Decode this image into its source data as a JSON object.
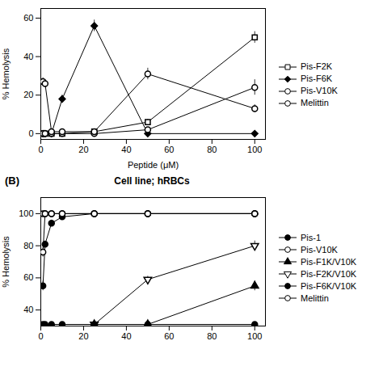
{
  "chart_data": [
    {
      "type": "line",
      "xlabel": "Peptide (μM)",
      "ylabel": "% Hemolysis",
      "xlim": [
        0,
        105
      ],
      "ylim": [
        -3,
        65
      ],
      "xticks": [
        0,
        20,
        40,
        60,
        80,
        100
      ],
      "yticks": [
        0,
        20,
        40,
        60
      ],
      "grid": false,
      "legend": "right",
      "series": [
        {
          "name": "Pis-F2K",
          "color": "black",
          "marker": "square-open",
          "x": [
            1,
            2,
            5,
            10,
            25,
            50,
            100
          ],
          "values": [
            0,
            0,
            0,
            0,
            1,
            6,
            50
          ],
          "yerr": [
            0.5,
            0.5,
            0.5,
            0.5,
            1,
            1.5,
            3
          ]
        },
        {
          "name": "Pis-F6K",
          "color": "black",
          "marker": "diamond",
          "x": [
            1,
            2,
            5,
            10,
            25,
            50,
            100
          ],
          "values": [
            0,
            0,
            0,
            18,
            56,
            0,
            0
          ],
          "yerr": [
            0.5,
            0.5,
            0.5,
            2,
            3,
            0.5,
            0.5
          ]
        },
        {
          "name": "Pis-V10K",
          "color": "black",
          "marker": "circle-open",
          "x": [
            1,
            2,
            5,
            10,
            25,
            50,
            100
          ],
          "values": [
            0,
            0,
            0,
            0,
            0,
            2,
            24
          ],
          "yerr": [
            0.3,
            0.3,
            0.3,
            0.3,
            0.3,
            1,
            4
          ]
        },
        {
          "name": "Melittin",
          "color": "black",
          "marker": "circle-open",
          "x": [
            1,
            2,
            5,
            10,
            25,
            50,
            100
          ],
          "values": [
            27,
            26,
            1,
            1,
            1,
            31,
            13
          ],
          "yerr": [
            2,
            2,
            0.5,
            0.5,
            0.5,
            3,
            2
          ]
        }
      ]
    },
    {
      "type": "line",
      "title": "Cell line; hRBCs",
      "annotation": "(B)",
      "ylabel": "% Hemolysis",
      "xlim": [
        0,
        105
      ],
      "ylim": [
        30,
        110
      ],
      "xticks": [
        0,
        20,
        40,
        60,
        80,
        100
      ],
      "yticks": [
        40,
        60,
        80,
        100
      ],
      "grid": false,
      "legend": "right",
      "series": [
        {
          "name": "Pis-1",
          "color": "black",
          "marker": "circle",
          "x": [
            1,
            2,
            5,
            10,
            25,
            50,
            100
          ],
          "values": [
            55,
            81,
            94,
            98,
            100,
            100,
            100
          ],
          "yerr": [
            3,
            2,
            2,
            2,
            1,
            1,
            1
          ]
        },
        {
          "name": "Pis-V10K",
          "color": "black",
          "marker": "circle-open",
          "x": [
            1,
            2,
            5,
            10,
            25,
            50,
            100
          ],
          "values": [
            76,
            100,
            100,
            100,
            100,
            100,
            100
          ],
          "yerr": [
            3,
            1,
            1,
            1,
            1,
            1,
            1
          ]
        },
        {
          "name": "Pis-F1K/V10K",
          "color": "black",
          "marker": "triangle",
          "x": [
            25,
            50,
            100
          ],
          "values": [
            31,
            31,
            55
          ],
          "yerr": [
            1,
            1,
            3
          ]
        },
        {
          "name": "Pis-F2K/V10K",
          "color": "black",
          "marker": "triangle-down-open",
          "x": [
            25,
            50,
            100
          ],
          "values": [
            31,
            59,
            80
          ],
          "yerr": [
            1,
            2,
            3
          ]
        },
        {
          "name": "Pis-F6K/V10K",
          "color": "black",
          "marker": "circle",
          "x": [
            1,
            2,
            5,
            10,
            25,
            50,
            100
          ],
          "values": [
            31,
            31,
            31,
            31,
            31,
            31,
            31
          ],
          "yerr": [
            1,
            1,
            1,
            1,
            1,
            1,
            1
          ]
        },
        {
          "name": "Melittin",
          "color": "black",
          "marker": "circle-open",
          "x": [
            1,
            2,
            5,
            10,
            25,
            50,
            100
          ],
          "values": [
            100,
            100,
            100,
            100,
            100,
            100,
            100
          ],
          "yerr": [
            1,
            1,
            1,
            1,
            1,
            1,
            1
          ]
        }
      ]
    }
  ]
}
